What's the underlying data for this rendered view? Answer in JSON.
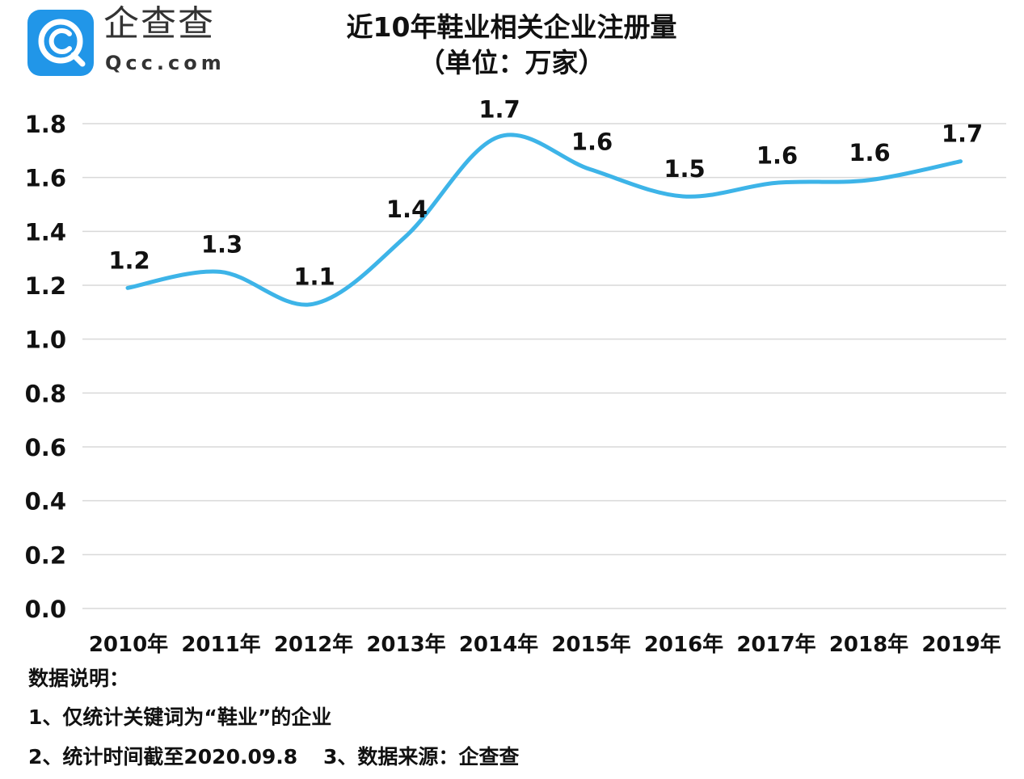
{
  "brand": {
    "name": "企查查",
    "domain": "Qcc.com",
    "icon": "qcc-logo-icon",
    "color": "#2196e8"
  },
  "notes": {
    "title": "数据说明：",
    "item1": "1、仅统计关键词为“鞋业”的企业",
    "item2": "2、统计时间截至2020.09.8",
    "item3": "3、数据来源：企查查"
  },
  "chart_data": {
    "type": "line",
    "title": "近10年鞋业相关企业注册量",
    "subtitle": "（单位：万家）",
    "categories": [
      "2010年",
      "2011年",
      "2012年",
      "2013年",
      "2014年",
      "2015年",
      "2016年",
      "2017年",
      "2018年",
      "2019年"
    ],
    "values": [
      1.19,
      1.25,
      1.13,
      1.38,
      1.75,
      1.63,
      1.53,
      1.58,
      1.59,
      1.66
    ],
    "data_labels": [
      "1.2",
      "1.3",
      "1.1",
      "1.4",
      "1.7",
      "1.6",
      "1.5",
      "1.6",
      "1.6",
      "1.7"
    ],
    "ylim": [
      0,
      1.8
    ],
    "yticks": [
      "0.0",
      "0.2",
      "0.4",
      "0.6",
      "0.8",
      "1.0",
      "1.2",
      "1.4",
      "1.6",
      "1.8"
    ],
    "grid": true,
    "line_color": "#3db4e8",
    "smooth": true
  }
}
